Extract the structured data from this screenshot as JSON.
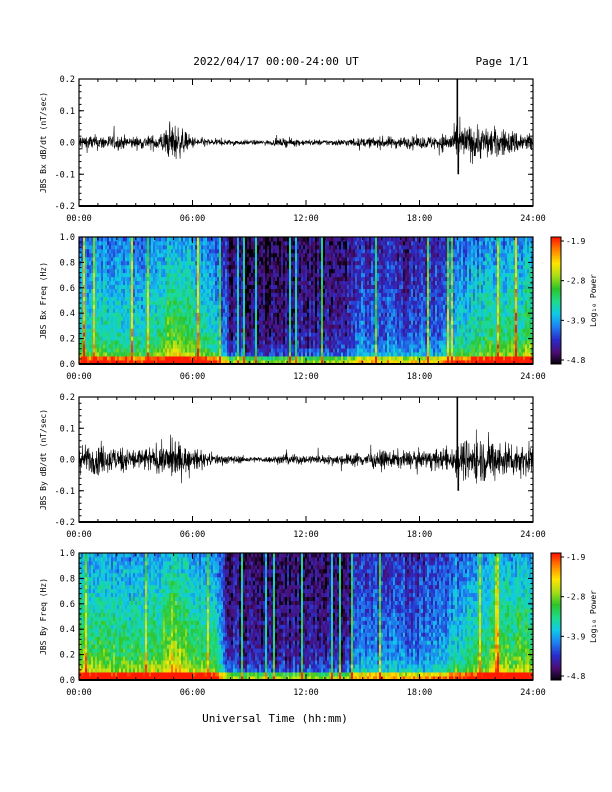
{
  "header": {
    "date_range": "2022/04/17  00:00-24:00 UT",
    "page": "Page 1/1"
  },
  "colors": {
    "trace": "#000000",
    "background": "#ffffff",
    "colormap": [
      "#000000",
      "#4b0e72",
      "#2a2cc9",
      "#1f7ff0",
      "#10c9e8",
      "#1edb8a",
      "#2fc42a",
      "#a8dd18",
      "#ffe500",
      "#ff8a00",
      "#ff1a00"
    ]
  },
  "footer": {
    "xlabel": "Universal Time (hh:mm)"
  },
  "chart_data": [
    {
      "type": "line",
      "name": "bx_derivative",
      "ylabel": "JBS Bx dB/dt (nT/sec)",
      "x_ticks": [
        "00:00",
        "06:00",
        "12:00",
        "18:00",
        "24:00"
      ],
      "xlim": [
        0,
        24
      ],
      "ylim": [
        -0.2,
        0.2
      ],
      "y_ticks": [
        "0.2",
        "0.1",
        "0.0",
        "-0.1",
        "-0.2"
      ],
      "envelope": {
        "hours": [
          0,
          1,
          2,
          3,
          4,
          4.5,
          5,
          5.5,
          6,
          7,
          8,
          9,
          10,
          11,
          12,
          13,
          14,
          15,
          16,
          17,
          18,
          19,
          19.5,
          20,
          20.5,
          21,
          22,
          23,
          24
        ],
        "amplitude": [
          0.03,
          0.025,
          0.025,
          0.02,
          0.025,
          0.04,
          0.07,
          0.04,
          0.02,
          0.012,
          0.01,
          0.008,
          0.008,
          0.015,
          0.01,
          0.01,
          0.012,
          0.015,
          0.02,
          0.02,
          0.02,
          0.025,
          0.035,
          0.05,
          0.06,
          0.06,
          0.05,
          0.04,
          0.035
        ]
      },
      "spikes": [
        {
          "hour": 20.0,
          "value": 0.2
        },
        {
          "hour": 20.05,
          "value": -0.1
        }
      ]
    },
    {
      "type": "heatmap",
      "name": "bx_spectrogram",
      "ylabel": "JBS Bx Freq (Hz)",
      "x_ticks": [
        "00:00",
        "06:00",
        "12:00",
        "18:00",
        "24:00"
      ],
      "xlim": [
        0,
        24
      ],
      "ylim": [
        0,
        1.0
      ],
      "y_ticks": [
        "1.0",
        "0.8",
        "0.6",
        "0.4",
        "0.2",
        "0.0"
      ],
      "colorbar": {
        "label": "Log₁₀ Power",
        "ticks": [
          "-1.9",
          "-2.8",
          "-3.9",
          "-4.8"
        ],
        "range": [
          -4.8,
          -1.9
        ]
      },
      "activity": {
        "hours": [
          0,
          2,
          4,
          5,
          6,
          7.2,
          8,
          10,
          12,
          14,
          15,
          16,
          18,
          19,
          20,
          21,
          22,
          24
        ],
        "level": [
          0.55,
          0.5,
          0.5,
          0.75,
          0.6,
          0.5,
          0.15,
          0.12,
          0.15,
          0.15,
          0.3,
          0.3,
          0.25,
          0.3,
          0.45,
          0.55,
          0.6,
          0.6
        ]
      }
    },
    {
      "type": "line",
      "name": "by_derivative",
      "ylabel": "JBS By dB/dt (nT/sec)",
      "x_ticks": [
        "00:00",
        "06:00",
        "12:00",
        "18:00",
        "24:00"
      ],
      "xlim": [
        0,
        24
      ],
      "ylim": [
        -0.2,
        0.2
      ],
      "y_ticks": [
        "0.2",
        "0.1",
        "0.0",
        "-0.1",
        "-0.2"
      ],
      "envelope": {
        "hours": [
          0,
          1,
          2,
          3,
          4,
          4.5,
          5,
          5.5,
          6,
          7,
          8,
          9,
          10,
          11,
          12,
          13,
          14,
          15,
          16,
          17,
          18,
          19,
          19.5,
          20,
          20.5,
          21,
          22,
          23,
          24
        ],
        "amplitude": [
          0.05,
          0.05,
          0.045,
          0.04,
          0.045,
          0.05,
          0.07,
          0.05,
          0.035,
          0.02,
          0.015,
          0.01,
          0.01,
          0.02,
          0.015,
          0.015,
          0.02,
          0.025,
          0.03,
          0.03,
          0.03,
          0.035,
          0.04,
          0.06,
          0.07,
          0.08,
          0.07,
          0.06,
          0.05
        ]
      },
      "spikes": [
        {
          "hour": 20.0,
          "value": 0.2
        },
        {
          "hour": 20.05,
          "value": -0.1
        }
      ]
    },
    {
      "type": "heatmap",
      "name": "by_spectrogram",
      "ylabel": "JBS By Freq (Hz)",
      "x_ticks": [
        "00:00",
        "06:00",
        "12:00",
        "18:00",
        "24:00"
      ],
      "xlim": [
        0,
        24
      ],
      "ylim": [
        0,
        1.0
      ],
      "y_ticks": [
        "1.0",
        "0.8",
        "0.6",
        "0.4",
        "0.2",
        "0.0"
      ],
      "colorbar": {
        "label": "Log₁₀ Power",
        "ticks": [
          "-1.9",
          "-2.8",
          "-3.9",
          "-4.8"
        ],
        "range": [
          -4.8,
          -1.9
        ]
      },
      "activity": {
        "hours": [
          0,
          2,
          4,
          5,
          6,
          7.2,
          8,
          10,
          12,
          14,
          15,
          16,
          18,
          19,
          20,
          21,
          22,
          24
        ],
        "level": [
          0.65,
          0.6,
          0.6,
          0.8,
          0.65,
          0.55,
          0.15,
          0.12,
          0.15,
          0.15,
          0.35,
          0.35,
          0.3,
          0.35,
          0.5,
          0.6,
          0.65,
          0.65
        ]
      }
    }
  ]
}
